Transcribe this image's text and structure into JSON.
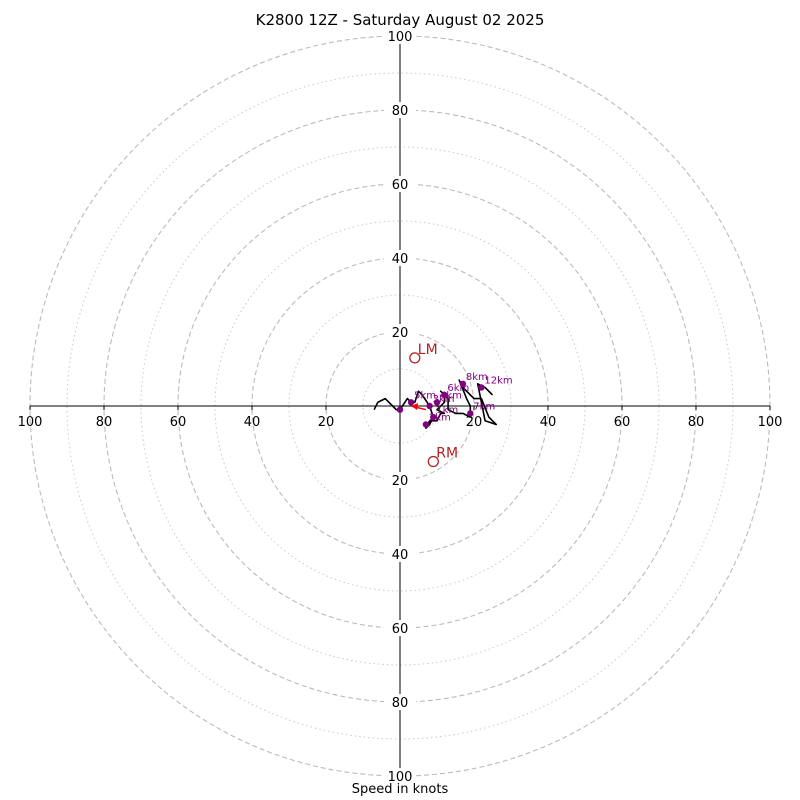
{
  "chart_data": {
    "type": "hodograph",
    "title": "K2800 12Z - Saturday August 02 2025",
    "xlabel": "Speed in knots",
    "range": [
      -100,
      100
    ],
    "tick_labels": [
      "100",
      "80",
      "60",
      "40",
      "20",
      "20",
      "40",
      "60",
      "80",
      "100"
    ],
    "y_tick_labels": [
      "100",
      "80",
      "60",
      "40",
      "20",
      "20",
      "40",
      "60",
      "80",
      "100"
    ],
    "rings_major": [
      20,
      40,
      60,
      80,
      100
    ],
    "rings_minor": [
      10,
      30,
      50,
      70,
      90
    ],
    "colors": {
      "ring": "#bbbbbb",
      "trace": "#000000",
      "points": "#800080",
      "motion": "#b22222",
      "shear": "#ff0000"
    },
    "trace": [
      [
        -7,
        -1
      ],
      [
        -6,
        1
      ],
      [
        -4,
        2
      ],
      [
        -3,
        1
      ],
      [
        -2,
        0
      ],
      [
        -1,
        -1
      ],
      [
        0,
        -1
      ],
      [
        2,
        2
      ],
      [
        3,
        1
      ],
      [
        4,
        1
      ],
      [
        5,
        4
      ],
      [
        6,
        3
      ],
      [
        8,
        0
      ],
      [
        9,
        -3
      ],
      [
        8,
        -5
      ],
      [
        7,
        -6
      ],
      [
        8,
        -4
      ],
      [
        10,
        -4
      ],
      [
        11,
        -2
      ],
      [
        12,
        -2
      ],
      [
        10,
        -1
      ],
      [
        12,
        1
      ],
      [
        12,
        3
      ],
      [
        11,
        4
      ],
      [
        13,
        2
      ],
      [
        13,
        -1
      ],
      [
        15,
        -2
      ],
      [
        17,
        -2
      ],
      [
        19,
        -3
      ],
      [
        19,
        0
      ],
      [
        18,
        2
      ],
      [
        16,
        7
      ],
      [
        17,
        5
      ],
      [
        20,
        2
      ],
      [
        22,
        2
      ],
      [
        24,
        -3
      ],
      [
        26,
        -5
      ],
      [
        23,
        -4
      ],
      [
        22,
        1
      ],
      [
        21,
        6
      ],
      [
        23,
        5
      ],
      [
        25,
        3
      ]
    ],
    "height_points": [
      {
        "label": "",
        "x": 0,
        "y": -1
      },
      {
        "label": "1km",
        "x": 9,
        "y": -3
      },
      {
        "label": "2km",
        "x": 7,
        "y": -5
      },
      {
        "label": "3km",
        "x": 8,
        "y": 0
      },
      {
        "label": "4km",
        "x": 10,
        "y": 1
      },
      {
        "label": "5km",
        "x": 3,
        "y": 1
      },
      {
        "label": "6km",
        "x": 12,
        "y": 3
      },
      {
        "label": "7km",
        "x": 19,
        "y": -2
      },
      {
        "label": "8km",
        "x": 17,
        "y": 6
      },
      {
        "label": "12km",
        "x": 22,
        "y": 5
      }
    ],
    "storm_motion": [
      {
        "label": "LM",
        "x": 4,
        "y": 13
      },
      {
        "label": "RM",
        "x": 9,
        "y": -15
      }
    ],
    "shear_vector": {
      "x1": 7,
      "y1": -1,
      "x2": 3,
      "y2": 0
    }
  }
}
